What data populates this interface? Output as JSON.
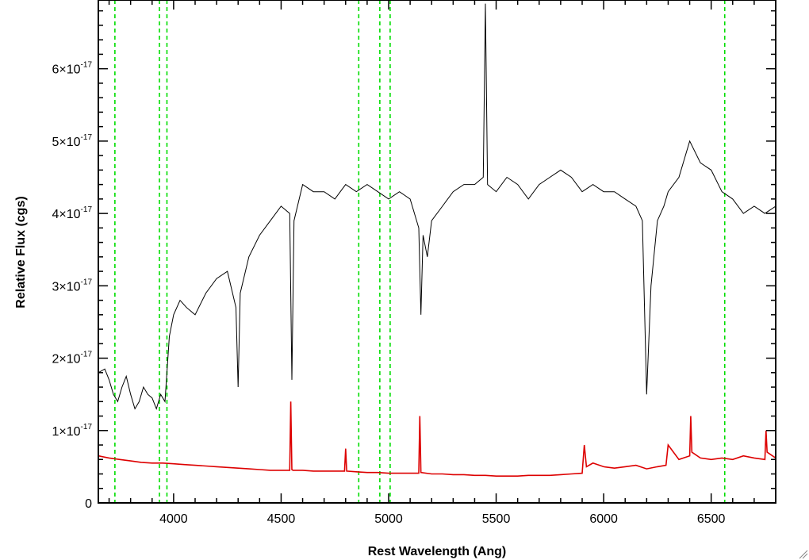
{
  "chart_data": {
    "type": "line",
    "title": "",
    "xlabel": "Rest Wavelength (Ang)",
    "ylabel": "Relative Flux (cgs)",
    "xlim": [
      3650,
      6800
    ],
    "ylim": [
      0,
      6.95e-17
    ],
    "x_ticks": [
      {
        "value": 4000,
        "label": "4000"
      },
      {
        "value": 4500,
        "label": "4500"
      },
      {
        "value": 5000,
        "label": "5000"
      },
      {
        "value": 5500,
        "label": "5500"
      },
      {
        "value": 6000,
        "label": "6000"
      },
      {
        "value": 6500,
        "label": "6500"
      }
    ],
    "y_ticks": [
      {
        "value": 0,
        "mantissa": "0",
        "exponent": ""
      },
      {
        "value": 1e-17,
        "mantissa": "1×10",
        "exponent": "-17"
      },
      {
        "value": 2e-17,
        "mantissa": "2×10",
        "exponent": "-17"
      },
      {
        "value": 3e-17,
        "mantissa": "3×10",
        "exponent": "-17"
      },
      {
        "value": 4e-17,
        "mantissa": "4×10",
        "exponent": "-17"
      },
      {
        "value": 5e-17,
        "mantissa": "5×10",
        "exponent": "-17"
      },
      {
        "value": 6e-17,
        "mantissa": "6×10",
        "exponent": "-17"
      }
    ],
    "grid": false,
    "legend": "none",
    "vertical_lines": {
      "color": "#00dd00",
      "style": "dashed",
      "x": [
        3727,
        3934,
        3969,
        4861,
        4959,
        5007,
        6563
      ]
    },
    "series": [
      {
        "color": "#000000",
        "units": "1e-17",
        "x": [
          3650,
          3680,
          3700,
          3720,
          3740,
          3760,
          3780,
          3800,
          3820,
          3840,
          3860,
          3880,
          3900,
          3920,
          3940,
          3960,
          3980,
          4000,
          4030,
          4060,
          4100,
          4150,
          4200,
          4250,
          4290,
          4300,
          4310,
          4350,
          4400,
          4450,
          4500,
          4540,
          4550,
          4560,
          4600,
          4650,
          4700,
          4750,
          4800,
          4850,
          4900,
          4950,
          5000,
          5050,
          5100,
          5140,
          5150,
          5160,
          5180,
          5200,
          5250,
          5300,
          5350,
          5400,
          5440,
          5450,
          5460,
          5500,
          5550,
          5600,
          5650,
          5700,
          5750,
          5800,
          5850,
          5900,
          5950,
          6000,
          6050,
          6100,
          6150,
          6180,
          6200,
          6220,
          6250,
          6280,
          6300,
          6350,
          6400,
          6450,
          6500,
          6550,
          6600,
          6650,
          6700,
          6750,
          6800
        ],
        "y": [
          1.8,
          1.85,
          1.7,
          1.5,
          1.4,
          1.6,
          1.75,
          1.5,
          1.3,
          1.4,
          1.6,
          1.5,
          1.45,
          1.3,
          1.5,
          1.4,
          2.3,
          2.6,
          2.8,
          2.7,
          2.6,
          2.9,
          3.1,
          3.2,
          2.7,
          1.6,
          2.9,
          3.4,
          3.7,
          3.9,
          4.1,
          4.0,
          1.7,
          3.9,
          4.4,
          4.3,
          4.3,
          4.2,
          4.4,
          4.3,
          4.4,
          4.3,
          4.2,
          4.3,
          4.2,
          3.8,
          2.6,
          3.7,
          3.4,
          3.9,
          4.1,
          4.3,
          4.4,
          4.4,
          4.5,
          6.9,
          4.4,
          4.3,
          4.5,
          4.4,
          4.2,
          4.4,
          4.5,
          4.6,
          4.5,
          4.3,
          4.4,
          4.3,
          4.3,
          4.2,
          4.1,
          3.9,
          1.5,
          3.0,
          3.9,
          4.1,
          4.3,
          4.5,
          5.0,
          4.7,
          4.6,
          4.3,
          4.2,
          4.0,
          4.1,
          4.0,
          4.1
        ]
      },
      {
        "color": "#dd0000",
        "units": "1e-17",
        "x": [
          3650,
          3700,
          3750,
          3800,
          3850,
          3900,
          3950,
          4000,
          4050,
          4100,
          4150,
          4200,
          4250,
          4300,
          4350,
          4400,
          4450,
          4500,
          4540,
          4545,
          4550,
          4555,
          4600,
          4650,
          4700,
          4750,
          4795,
          4800,
          4805,
          4850,
          4900,
          4950,
          5000,
          5050,
          5100,
          5140,
          5145,
          5150,
          5200,
          5250,
          5300,
          5350,
          5400,
          5450,
          5500,
          5550,
          5600,
          5650,
          5700,
          5750,
          5800,
          5850,
          5900,
          5910,
          5920,
          5950,
          6000,
          6050,
          6100,
          6150,
          6200,
          6250,
          6290,
          6300,
          6350,
          6400,
          6405,
          6410,
          6450,
          6500,
          6550,
          6600,
          6650,
          6700,
          6750,
          6755,
          6760,
          6800
        ],
        "y": [
          0.65,
          0.62,
          0.6,
          0.58,
          0.56,
          0.55,
          0.55,
          0.54,
          0.53,
          0.52,
          0.51,
          0.5,
          0.49,
          0.48,
          0.47,
          0.46,
          0.45,
          0.45,
          0.45,
          1.4,
          0.46,
          0.45,
          0.45,
          0.44,
          0.44,
          0.44,
          0.44,
          0.75,
          0.44,
          0.43,
          0.42,
          0.42,
          0.41,
          0.41,
          0.41,
          0.41,
          1.2,
          0.42,
          0.4,
          0.4,
          0.39,
          0.39,
          0.38,
          0.38,
          0.37,
          0.37,
          0.37,
          0.38,
          0.38,
          0.38,
          0.39,
          0.4,
          0.41,
          0.8,
          0.5,
          0.55,
          0.5,
          0.48,
          0.5,
          0.52,
          0.47,
          0.5,
          0.52,
          0.8,
          0.6,
          0.65,
          1.2,
          0.7,
          0.62,
          0.6,
          0.62,
          0.6,
          0.65,
          0.62,
          0.6,
          1.0,
          0.7,
          0.62
        ]
      }
    ]
  }
}
